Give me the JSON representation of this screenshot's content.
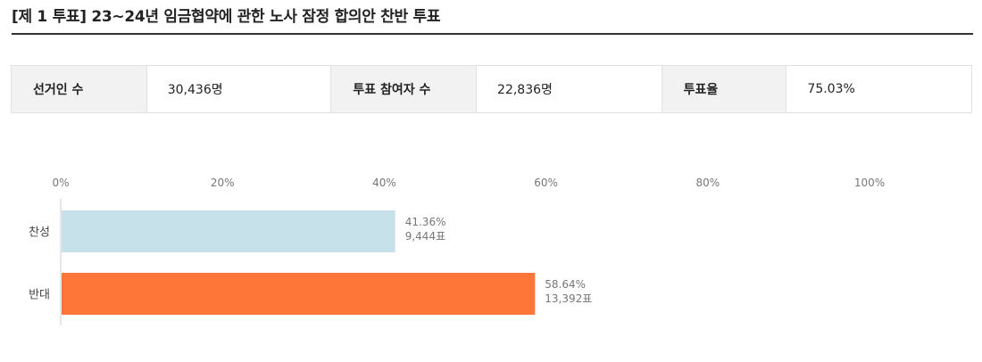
{
  "header": {
    "title": "[제 1 투표] 23~24년 임금협약에 관한 노사 잠정 합의안 찬반 투표"
  },
  "summary": {
    "voters_label": "선거인 수",
    "voters_value": "30,436명",
    "participants_label": "투표 참여자 수",
    "participants_value": "22,836명",
    "rate_label": "투표율",
    "rate_value": "75.03%"
  },
  "chart_data": {
    "type": "bar",
    "orientation": "horizontal",
    "title": "",
    "xlabel": "",
    "ylabel": "",
    "xlim": [
      0,
      100
    ],
    "x_ticks": [
      "0%",
      "20%",
      "40%",
      "60%",
      "80%",
      "100%"
    ],
    "categories": [
      "찬성",
      "반대"
    ],
    "values": [
      41.36,
      58.64
    ],
    "value_labels": [
      "41.36%",
      "58.64%"
    ],
    "count_labels": [
      "9,444표",
      "13,392표"
    ],
    "colors": [
      "#c7e1eb",
      "#ff7738"
    ],
    "grid": false,
    "legend": "none"
  }
}
